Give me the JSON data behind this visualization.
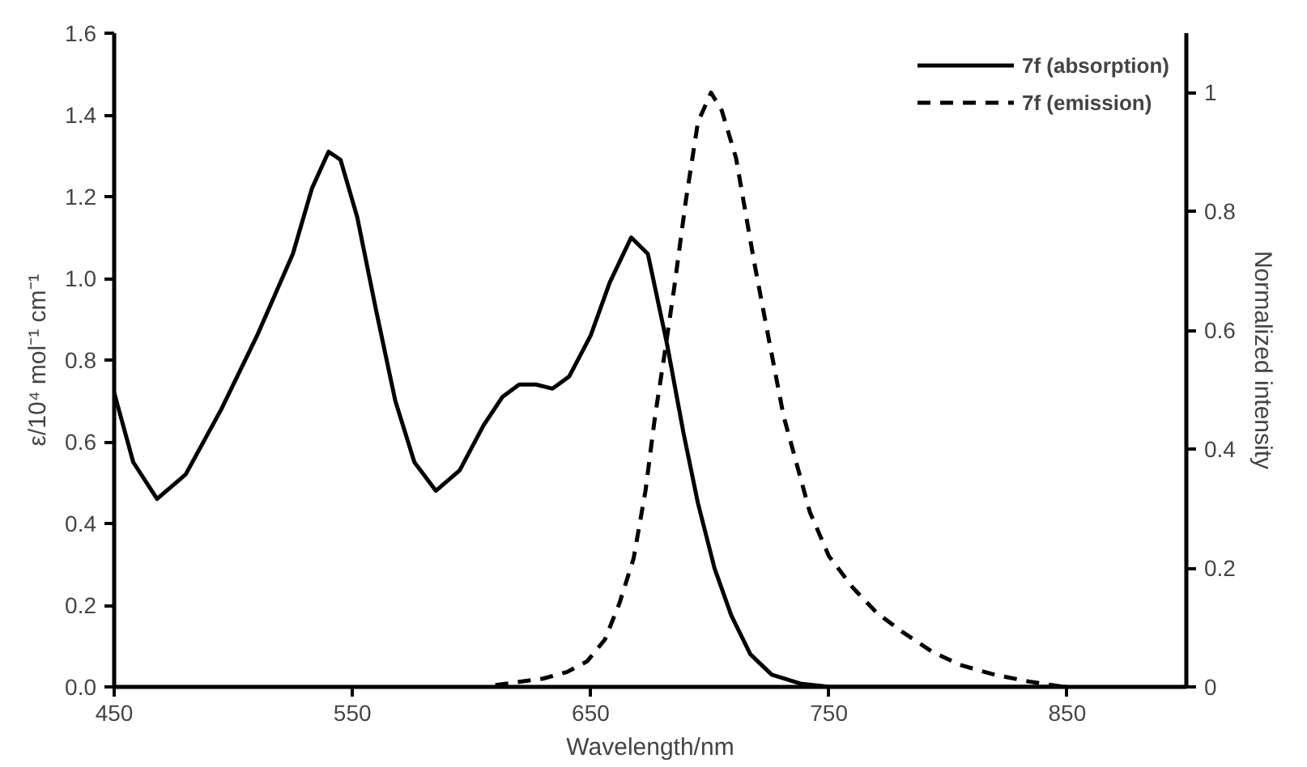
{
  "chart_data": {
    "type": "line",
    "xlabel": "Wavelength/nm",
    "ylabel": "ε/10⁴ mol⁻¹ cm⁻¹",
    "y2label": "Normalized intensity",
    "xlim": [
      450,
      900
    ],
    "xticks": [
      450,
      550,
      650,
      750,
      850
    ],
    "ylim": [
      0,
      1.6
    ],
    "yticks": [
      {
        "value": 0,
        "label": "0.0"
      },
      0.2,
      0.4,
      0.6,
      0.8,
      {
        "value": 1,
        "label": "1.0"
      },
      1.2,
      1.4,
      1.6
    ],
    "y2lim": [
      0,
      1.1
    ],
    "y2ticks": [
      0,
      0.2,
      0.4,
      0.6,
      0.8,
      1
    ],
    "grid": false,
    "legend": "top right",
    "series": [
      {
        "name": "7f (absorption)",
        "color": "#000000",
        "line_style": "solid",
        "x": [
          450,
          458,
          468,
          480,
          495,
          510,
          525,
          533,
          540,
          545,
          552,
          560,
          568,
          576,
          585,
          595,
          605,
          613,
          620,
          627,
          634,
          641,
          650,
          658,
          667,
          674,
          682,
          689,
          695,
          702,
          709,
          717,
          726,
          738,
          750,
          800,
          850
        ],
        "values": [
          0.72,
          0.55,
          0.46,
          0.52,
          0.68,
          0.86,
          1.06,
          1.22,
          1.31,
          1.29,
          1.15,
          0.92,
          0.7,
          0.55,
          0.48,
          0.53,
          0.64,
          0.71,
          0.74,
          0.74,
          0.73,
          0.76,
          0.86,
          0.99,
          1.1,
          1.06,
          0.84,
          0.62,
          0.45,
          0.29,
          0.175,
          0.08,
          0.03,
          0.008,
          0,
          0,
          0
        ]
      },
      {
        "name": "7f (emission)",
        "color": "#000000",
        "line_style": "dashed",
        "axis": "y2",
        "x": [
          610,
          630,
          640,
          648.5,
          656,
          662,
          668,
          673,
          677,
          681,
          685,
          690,
          695,
          700.5,
          705,
          711,
          718.6,
          725,
          731,
          742,
          750,
          760,
          770,
          781,
          793,
          805,
          820,
          834,
          848.5
        ],
        "values": [
          0.003,
          0.014,
          0.025,
          0.043,
          0.08,
          0.14,
          0.216,
          0.33,
          0.455,
          0.56,
          0.67,
          0.82,
          0.95,
          1.0,
          0.97,
          0.89,
          0.715,
          0.58,
          0.455,
          0.294,
          0.22,
          0.167,
          0.125,
          0.092,
          0.06,
          0.037,
          0.02,
          0.009,
          0
        ]
      }
    ]
  }
}
